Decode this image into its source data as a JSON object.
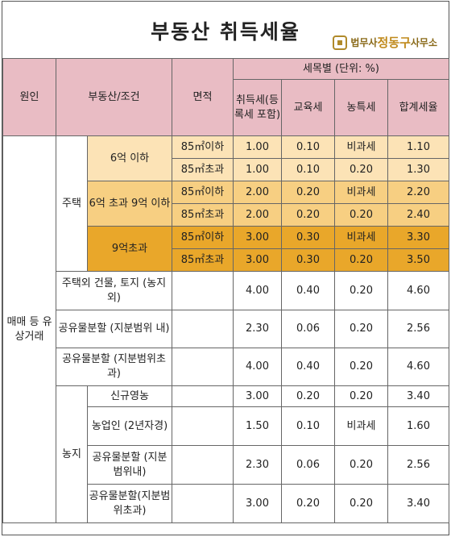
{
  "title": "부동산 취득세율",
  "logo": {
    "prefix": "법무사",
    "name": "정동구",
    "suffix": "사무소",
    "icon": "office-seal-icon"
  },
  "colors": {
    "header": "#e9bcc4",
    "tier1": "#fce3b6",
    "tier2": "#f7cf82",
    "tier3": "#e9a72a",
    "border": "#666666"
  },
  "headers": {
    "cause": "원인",
    "property_condition": "부동산/조건",
    "area": "면적",
    "rate_group": "세목별 (단위: %)",
    "acquisition": "취득세(등록세 포함)",
    "education": "교육세",
    "rural": "농특세",
    "total": "합계세율"
  },
  "cause_label": "매매 등 유상거래",
  "house_label": "주택",
  "farmland_label": "농지",
  "house_groups": [
    {
      "condition": "6억 이하",
      "rows": [
        {
          "area": "85㎡이하",
          "acq": "1.00",
          "edu": "0.10",
          "rural": "비과세",
          "total": "1.10"
        },
        {
          "area": "85㎡초과",
          "acq": "1.00",
          "edu": "0.10",
          "rural": "0.20",
          "total": "1.30"
        }
      ]
    },
    {
      "condition": "6억 초과 9억 이하",
      "rows": [
        {
          "area": "85㎡이하",
          "acq": "2.00",
          "edu": "0.20",
          "rural": "비과세",
          "total": "2.20"
        },
        {
          "area": "85㎡초과",
          "acq": "2.00",
          "edu": "0.20",
          "rural": "0.20",
          "total": "2.40"
        }
      ]
    },
    {
      "condition": "9억초과",
      "rows": [
        {
          "area": "85㎡이하",
          "acq": "3.00",
          "edu": "0.30",
          "rural": "비과세",
          "total": "3.30"
        },
        {
          "area": "85㎡초과",
          "acq": "3.00",
          "edu": "0.30",
          "rural": "0.20",
          "total": "3.50"
        }
      ]
    }
  ],
  "other_rows": [
    {
      "condition": "주택외 건물, 토지 (농지외)",
      "acq": "4.00",
      "edu": "0.40",
      "rural": "0.20",
      "total": "4.60"
    },
    {
      "condition": "공유물분할 (지분범위 내)",
      "acq": "2.30",
      "edu": "0.06",
      "rural": "0.20",
      "total": "2.56"
    },
    {
      "condition": "공유물분할 (지분범위초과)",
      "acq": "4.00",
      "edu": "0.40",
      "rural": "0.20",
      "total": "4.60"
    }
  ],
  "farmland_rows": [
    {
      "condition": "신규영농",
      "acq": "3.00",
      "edu": "0.20",
      "rural": "0.20",
      "total": "3.40"
    },
    {
      "condition": "농업인 (2년자경)",
      "acq": "1.50",
      "edu": "0.10",
      "rural": "비과세",
      "total": "1.60"
    },
    {
      "condition": "공유물분할 (지분범위내)",
      "acq": "2.30",
      "edu": "0.06",
      "rural": "0.20",
      "total": "2.56"
    },
    {
      "condition": "공유물분할(지분범위초과)",
      "acq": "3.00",
      "edu": "0.20",
      "rural": "0.20",
      "total": "3.40"
    }
  ]
}
